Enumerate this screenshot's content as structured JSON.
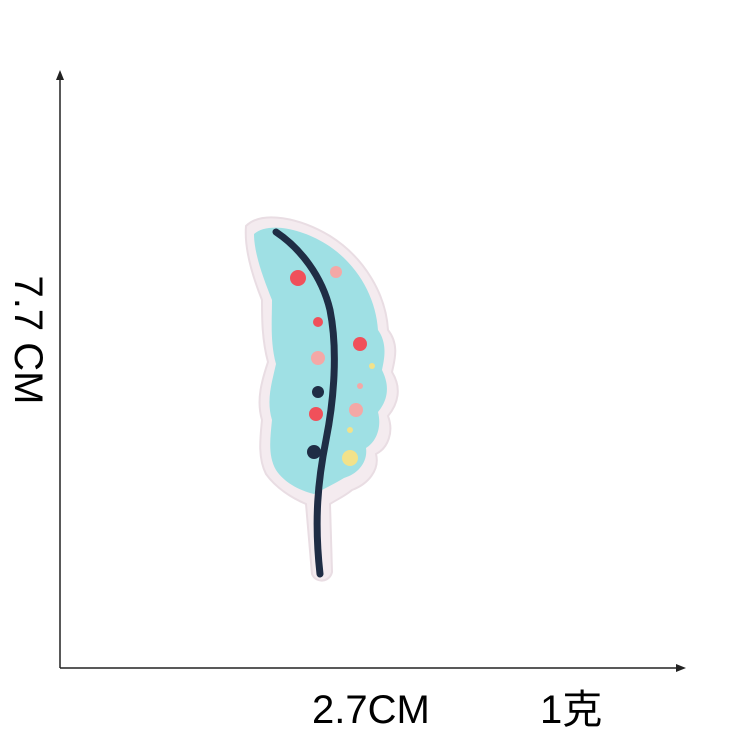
{
  "measurements": {
    "height_label": "7.7 CM",
    "width_label": "2.7CM",
    "weight_label": "1克"
  },
  "product": {
    "subject": "feather-embroidered-patch"
  },
  "colors": {
    "background": "#ffffff",
    "axis": "#222222",
    "feather_fill": "#9fe0e4",
    "feather_border": "#f3e9ee",
    "quill": "#1f2d45",
    "dot_red": "#f0505a",
    "dot_pink": "#f4a8a6",
    "dot_yellow": "#f2e28a",
    "dot_navy": "#1f2d45"
  }
}
